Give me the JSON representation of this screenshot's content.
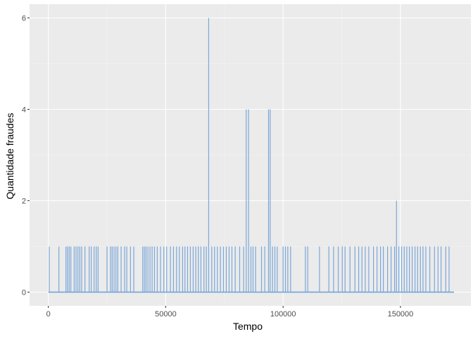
{
  "chart_data": {
    "type": "line",
    "title": "",
    "xlabel": "Tempo",
    "ylabel": "Quantidade fraudes",
    "xlim": [
      -8000,
      180000
    ],
    "ylim": [
      -0.3,
      6.3
    ],
    "x_ticks": [
      0,
      50000,
      100000,
      150000
    ],
    "x_tick_labels": [
      "0",
      "50000",
      "100000",
      "150000"
    ],
    "y_ticks": [
      0,
      2,
      4,
      6
    ],
    "y_tick_labels": [
      "0",
      "2",
      "4",
      "6"
    ],
    "grid": true,
    "series_color": "#7BA7D8",
    "panel_color": "#EBEBEB",
    "x_range": [
      0,
      172800
    ],
    "baseline_value": 0,
    "spikes": [
      {
        "x": 400,
        "y": 1
      },
      {
        "x": 4500,
        "y": 1
      },
      {
        "x": 7500,
        "y": 1
      },
      {
        "x": 8200,
        "y": 1
      },
      {
        "x": 8900,
        "y": 1
      },
      {
        "x": 9600,
        "y": 1
      },
      {
        "x": 11000,
        "y": 1
      },
      {
        "x": 11800,
        "y": 1
      },
      {
        "x": 12600,
        "y": 1
      },
      {
        "x": 13400,
        "y": 1
      },
      {
        "x": 14200,
        "y": 1
      },
      {
        "x": 15600,
        "y": 1
      },
      {
        "x": 17400,
        "y": 1
      },
      {
        "x": 18300,
        "y": 1
      },
      {
        "x": 19500,
        "y": 1
      },
      {
        "x": 20400,
        "y": 1
      },
      {
        "x": 21200,
        "y": 1
      },
      {
        "x": 25000,
        "y": 1
      },
      {
        "x": 26500,
        "y": 1
      },
      {
        "x": 27200,
        "y": 1
      },
      {
        "x": 28000,
        "y": 1
      },
      {
        "x": 28800,
        "y": 1
      },
      {
        "x": 29600,
        "y": 1
      },
      {
        "x": 31000,
        "y": 1
      },
      {
        "x": 32500,
        "y": 1
      },
      {
        "x": 33400,
        "y": 1
      },
      {
        "x": 35000,
        "y": 1
      },
      {
        "x": 36400,
        "y": 1
      },
      {
        "x": 40200,
        "y": 1
      },
      {
        "x": 40900,
        "y": 1
      },
      {
        "x": 41600,
        "y": 1
      },
      {
        "x": 42400,
        "y": 1
      },
      {
        "x": 43300,
        "y": 1
      },
      {
        "x": 44200,
        "y": 1
      },
      {
        "x": 45200,
        "y": 1
      },
      {
        "x": 46400,
        "y": 1
      },
      {
        "x": 47800,
        "y": 1
      },
      {
        "x": 49200,
        "y": 1
      },
      {
        "x": 50400,
        "y": 1
      },
      {
        "x": 52000,
        "y": 1
      },
      {
        "x": 53300,
        "y": 1
      },
      {
        "x": 54600,
        "y": 1
      },
      {
        "x": 55800,
        "y": 1
      },
      {
        "x": 57200,
        "y": 1
      },
      {
        "x": 58200,
        "y": 1
      },
      {
        "x": 59300,
        "y": 1
      },
      {
        "x": 60500,
        "y": 1
      },
      {
        "x": 61700,
        "y": 1
      },
      {
        "x": 62800,
        "y": 1
      },
      {
        "x": 63900,
        "y": 1
      },
      {
        "x": 65000,
        "y": 1
      },
      {
        "x": 66300,
        "y": 1
      },
      {
        "x": 67300,
        "y": 1
      },
      {
        "x": 68300,
        "y": 6
      },
      {
        "x": 69600,
        "y": 1
      },
      {
        "x": 70800,
        "y": 1
      },
      {
        "x": 72000,
        "y": 1
      },
      {
        "x": 73300,
        "y": 1
      },
      {
        "x": 74600,
        "y": 1
      },
      {
        "x": 75800,
        "y": 1
      },
      {
        "x": 77000,
        "y": 1
      },
      {
        "x": 78200,
        "y": 1
      },
      {
        "x": 79600,
        "y": 1
      },
      {
        "x": 81500,
        "y": 1
      },
      {
        "x": 83200,
        "y": 1
      },
      {
        "x": 84300,
        "y": 4
      },
      {
        "x": 85300,
        "y": 4
      },
      {
        "x": 86300,
        "y": 1
      },
      {
        "x": 87200,
        "y": 1
      },
      {
        "x": 88300,
        "y": 1
      },
      {
        "x": 90800,
        "y": 1
      },
      {
        "x": 92200,
        "y": 1
      },
      {
        "x": 93800,
        "y": 4
      },
      {
        "x": 94500,
        "y": 4
      },
      {
        "x": 95500,
        "y": 1
      },
      {
        "x": 96500,
        "y": 1
      },
      {
        "x": 97500,
        "y": 1
      },
      {
        "x": 100000,
        "y": 1
      },
      {
        "x": 101000,
        "y": 1
      },
      {
        "x": 102000,
        "y": 1
      },
      {
        "x": 103200,
        "y": 1
      },
      {
        "x": 109500,
        "y": 1
      },
      {
        "x": 110500,
        "y": 1
      },
      {
        "x": 115500,
        "y": 1
      },
      {
        "x": 119500,
        "y": 1
      },
      {
        "x": 121500,
        "y": 1
      },
      {
        "x": 123500,
        "y": 1
      },
      {
        "x": 125200,
        "y": 1
      },
      {
        "x": 126400,
        "y": 1
      },
      {
        "x": 128500,
        "y": 1
      },
      {
        "x": 130600,
        "y": 1
      },
      {
        "x": 132200,
        "y": 1
      },
      {
        "x": 133600,
        "y": 1
      },
      {
        "x": 135000,
        "y": 1
      },
      {
        "x": 136500,
        "y": 1
      },
      {
        "x": 138500,
        "y": 1
      },
      {
        "x": 140000,
        "y": 1
      },
      {
        "x": 141500,
        "y": 1
      },
      {
        "x": 142700,
        "y": 1
      },
      {
        "x": 144500,
        "y": 1
      },
      {
        "x": 146000,
        "y": 1
      },
      {
        "x": 147500,
        "y": 1
      },
      {
        "x": 148300,
        "y": 2
      },
      {
        "x": 149300,
        "y": 1
      },
      {
        "x": 150500,
        "y": 1
      },
      {
        "x": 151600,
        "y": 1
      },
      {
        "x": 152700,
        "y": 1
      },
      {
        "x": 153800,
        "y": 1
      },
      {
        "x": 155000,
        "y": 1
      },
      {
        "x": 156200,
        "y": 1
      },
      {
        "x": 157300,
        "y": 1
      },
      {
        "x": 158500,
        "y": 1
      },
      {
        "x": 159600,
        "y": 1
      },
      {
        "x": 160800,
        "y": 1
      },
      {
        "x": 162500,
        "y": 1
      },
      {
        "x": 164500,
        "y": 1
      },
      {
        "x": 166000,
        "y": 1
      },
      {
        "x": 167300,
        "y": 1
      },
      {
        "x": 169300,
        "y": 1
      },
      {
        "x": 170700,
        "y": 1
      }
    ]
  }
}
